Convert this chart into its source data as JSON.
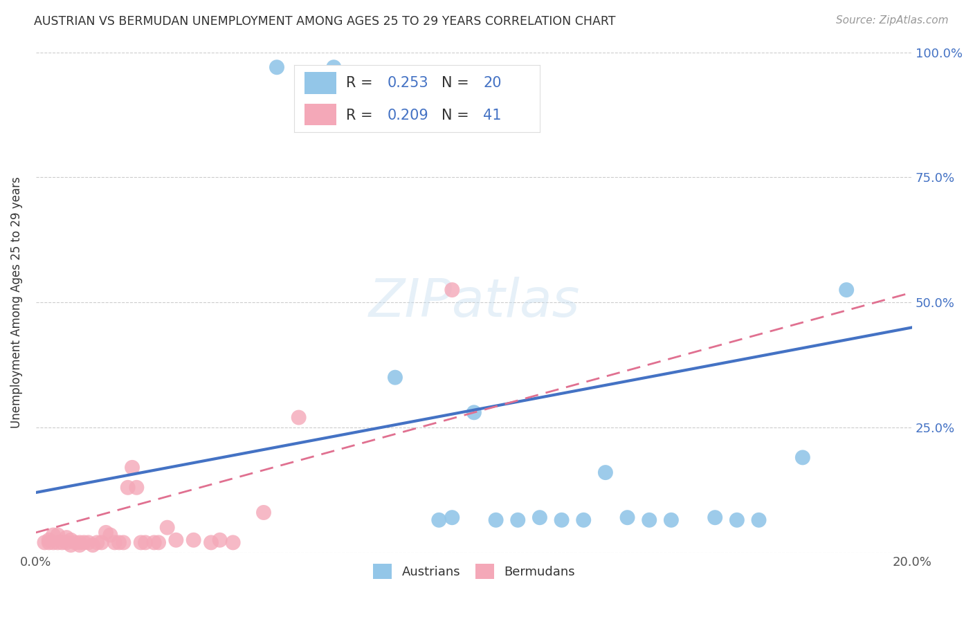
{
  "title": "AUSTRIAN VS BERMUDAN UNEMPLOYMENT AMONG AGES 25 TO 29 YEARS CORRELATION CHART",
  "source": "Source: ZipAtlas.com",
  "ylabel": "Unemployment Among Ages 25 to 29 years",
  "xlim": [
    0.0,
    0.2
  ],
  "ylim": [
    0.0,
    1.0
  ],
  "xticks": [
    0.0,
    0.05,
    0.1,
    0.15,
    0.2
  ],
  "xtick_labels": [
    "0.0%",
    "",
    "",
    "",
    "20.0%"
  ],
  "yticks": [
    0.0,
    0.25,
    0.5,
    0.75,
    1.0
  ],
  "ytick_labels": [
    "",
    "25.0%",
    "50.0%",
    "75.0%",
    "100.0%"
  ],
  "austrians_R": "0.253",
  "austrians_N": "20",
  "bermudans_R": "0.209",
  "bermudans_N": "41",
  "austrians_color": "#93C6E8",
  "bermudans_color": "#F4A8B8",
  "austrians_line_color": "#4472C4",
  "bermudans_line_color": "#E07090",
  "background_color": "#FFFFFF",
  "austrians_x": [
    0.055,
    0.068,
    0.082,
    0.092,
    0.095,
    0.1,
    0.105,
    0.11,
    0.115,
    0.12,
    0.125,
    0.13,
    0.135,
    0.14,
    0.145,
    0.155,
    0.16,
    0.165,
    0.175,
    0.185
  ],
  "austrians_y": [
    0.97,
    0.97,
    0.35,
    0.065,
    0.07,
    0.28,
    0.065,
    0.065,
    0.07,
    0.065,
    0.065,
    0.16,
    0.07,
    0.065,
    0.065,
    0.07,
    0.065,
    0.065,
    0.19,
    0.525
  ],
  "bermudans_x": [
    0.002,
    0.003,
    0.003,
    0.004,
    0.004,
    0.005,
    0.005,
    0.006,
    0.007,
    0.007,
    0.008,
    0.008,
    0.009,
    0.01,
    0.01,
    0.011,
    0.012,
    0.013,
    0.014,
    0.015,
    0.016,
    0.017,
    0.018,
    0.019,
    0.02,
    0.021,
    0.022,
    0.023,
    0.024,
    0.025,
    0.027,
    0.028,
    0.03,
    0.032,
    0.036,
    0.04,
    0.042,
    0.045,
    0.052,
    0.06,
    0.095
  ],
  "bermudans_y": [
    0.02,
    0.02,
    0.025,
    0.02,
    0.035,
    0.02,
    0.035,
    0.02,
    0.02,
    0.03,
    0.015,
    0.025,
    0.02,
    0.015,
    0.02,
    0.02,
    0.02,
    0.015,
    0.02,
    0.02,
    0.04,
    0.035,
    0.02,
    0.02,
    0.02,
    0.13,
    0.17,
    0.13,
    0.02,
    0.02,
    0.02,
    0.02,
    0.05,
    0.025,
    0.025,
    0.02,
    0.025,
    0.02,
    0.08,
    0.27,
    0.525
  ],
  "trend_austrians_x0": 0.0,
  "trend_austrians_y0": 0.12,
  "trend_austrians_x1": 0.2,
  "trend_austrians_y1": 0.45,
  "trend_bermudans_x0": 0.0,
  "trend_bermudans_y0": 0.04,
  "trend_bermudans_x1": 0.2,
  "trend_bermudans_y1": 0.52
}
